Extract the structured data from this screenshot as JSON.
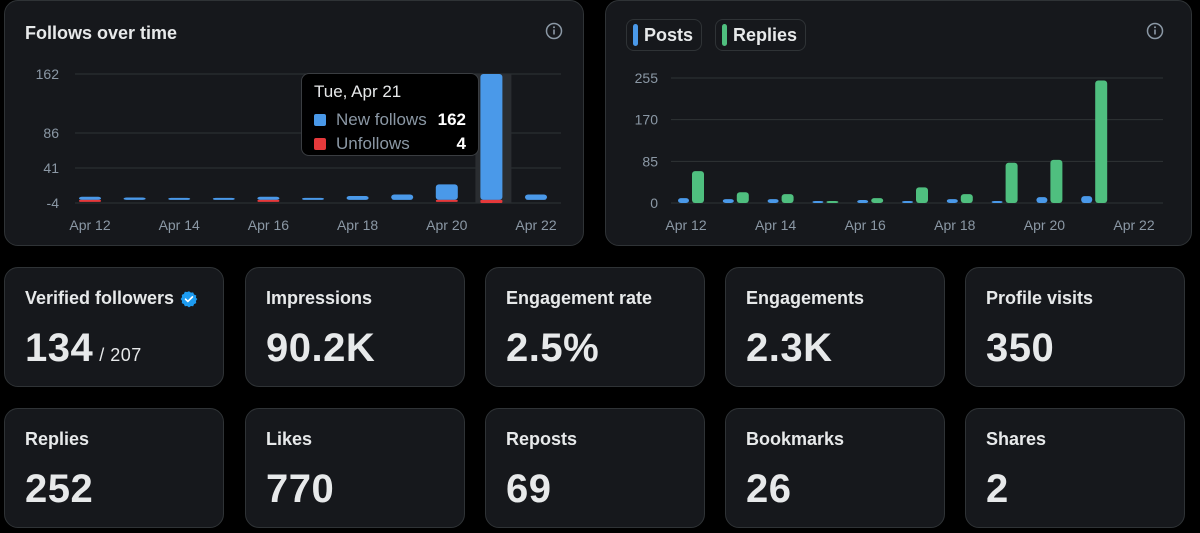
{
  "follows_chart": {
    "title": "Follows over time",
    "tooltip": {
      "date": "Tue, Apr 21",
      "rows": [
        {
          "label": "New follows",
          "value": "162"
        },
        {
          "label": "Unfollows",
          "value": "4"
        }
      ]
    },
    "chart_data": {
      "type": "bar",
      "categories": [
        "Apr 12",
        "Apr 13",
        "Apr 14",
        "Apr 15",
        "Apr 16",
        "Apr 17",
        "Apr 18",
        "Apr 19",
        "Apr 20",
        "Apr 21",
        "Apr 22"
      ],
      "x_tick_labels": [
        "Apr 12",
        "Apr 14",
        "Apr 16",
        "Apr 18",
        "Apr 20",
        "Apr 22"
      ],
      "y_ticks": [
        "162",
        "86",
        "41",
        "-4"
      ],
      "ylim": [
        -4,
        162
      ],
      "series": [
        {
          "name": "New follows",
          "color": "#4a99e9",
          "values": [
            4,
            3,
            2,
            2,
            4,
            2,
            5,
            7,
            20,
            162,
            7
          ]
        },
        {
          "name": "Unfollows",
          "color": "#e5393b",
          "values": [
            2,
            0,
            0,
            0,
            1,
            0,
            0,
            0,
            1,
            4,
            0
          ]
        }
      ],
      "highlighted": "Apr 21"
    }
  },
  "posts_chart": {
    "legend": [
      {
        "label": "Posts",
        "color": "#4a99e9"
      },
      {
        "label": "Replies",
        "color": "#4fbf7f"
      }
    ],
    "chart_data": {
      "type": "bar",
      "categories": [
        "Apr 12",
        "Apr 13",
        "Apr 14",
        "Apr 15",
        "Apr 16",
        "Apr 17",
        "Apr 18",
        "Apr 19",
        "Apr 20",
        "Apr 21",
        "Apr 22"
      ],
      "x_tick_labels": [
        "Apr 12",
        "Apr 14",
        "Apr 16",
        "Apr 18",
        "Apr 20",
        "Apr 22"
      ],
      "y_ticks": [
        "255",
        "170",
        "85",
        "0"
      ],
      "ylim": [
        0,
        255
      ],
      "series": [
        {
          "name": "Posts",
          "color": "#4a99e9",
          "values": [
            10,
            8,
            8,
            2,
            6,
            4,
            8,
            4,
            12,
            14,
            0
          ]
        },
        {
          "name": "Replies",
          "color": "#4fbf7f",
          "values": [
            65,
            22,
            18,
            2,
            10,
            32,
            18,
            82,
            88,
            250,
            0
          ]
        }
      ]
    }
  },
  "stats_row1": [
    {
      "label": "Verified followers",
      "value": "134",
      "sub": "/ 207",
      "verified": true
    },
    {
      "label": "Impressions",
      "value": "90.2K"
    },
    {
      "label": "Engagement rate",
      "value": "2.5%"
    },
    {
      "label": "Engagements",
      "value": "2.3K"
    },
    {
      "label": "Profile visits",
      "value": "350"
    }
  ],
  "stats_row2": [
    {
      "label": "Replies",
      "value": "252"
    },
    {
      "label": "Likes",
      "value": "770"
    },
    {
      "label": "Reposts",
      "value": "69"
    },
    {
      "label": "Bookmarks",
      "value": "26"
    },
    {
      "label": "Shares",
      "value": "2"
    }
  ],
  "colors": {
    "background": "#000000",
    "card": "#16181c",
    "border": "#2f3336",
    "blue": "#4a99e9",
    "green": "#4fbf7f",
    "red": "#e5393b",
    "verified": "#1d9bf0"
  }
}
